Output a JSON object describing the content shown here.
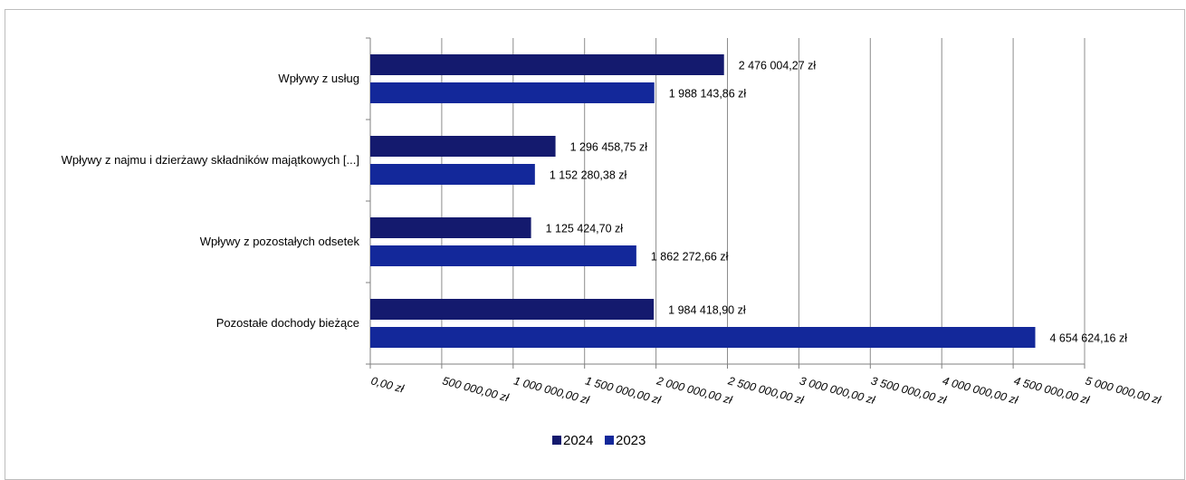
{
  "chart_data": {
    "type": "bar",
    "orientation": "horizontal",
    "categories": [
      "Wpływy z usług",
      "Wpływy z najmu i dzierżawy składników majątkowych [...]",
      "Wpływy z pozostałych odsetek",
      "Pozostałe dochody bieżące"
    ],
    "series": [
      {
        "name": "2024",
        "color": "#141a6e",
        "values": [
          2476004.27,
          1296458.75,
          1125424.7,
          1984418.9
        ],
        "labels": [
          "2 476 004,27 zł",
          "1 296 458,75 zł",
          "1 125 424,70 zł",
          "1 984 418,90 zł"
        ]
      },
      {
        "name": "2023",
        "color": "#13289a",
        "values": [
          1988143.86,
          1152280.38,
          1862272.66,
          4654624.16
        ],
        "labels": [
          "1 988 143,86 zł",
          "1 152 280,38 zł",
          "1 862 272,66 zł",
          "4 654 624,16 zł"
        ]
      }
    ],
    "xlim": [
      0,
      5000000
    ],
    "x_ticks": [
      0,
      500000,
      1000000,
      1500000,
      2000000,
      2500000,
      3000000,
      3500000,
      4000000,
      4500000,
      5000000
    ],
    "x_tick_labels": [
      "0,00 zł",
      "500 000,00 zł",
      "1 000 000,00 zł",
      "1 500 000,00 zł",
      "2 000 000,00 zł",
      "2 500 000,00 zł",
      "3 000 000,00 zł",
      "3 500 000,00 zł",
      "4 000 000,00 zł",
      "4 500 000,00 zł",
      "5 000 000,00 zł"
    ],
    "title": "",
    "xlabel": "",
    "ylabel": "",
    "grid": "vertical",
    "legend_position": "bottom"
  }
}
